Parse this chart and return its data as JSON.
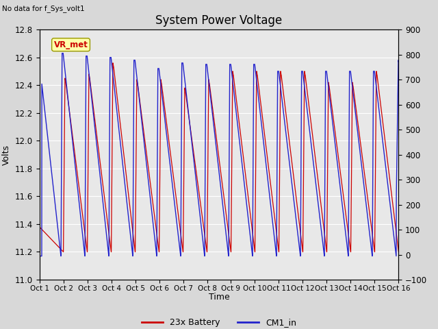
{
  "title": "System Power Voltage",
  "no_data_text": "No data for f_Sys_volt1",
  "xlabel": "Time",
  "ylabel_left": "Volts",
  "ylim_left": [
    11.0,
    12.8
  ],
  "ylim_right": [
    -100,
    900
  ],
  "yticks_left": [
    11.0,
    11.2,
    11.4,
    11.6,
    11.8,
    12.0,
    12.2,
    12.4,
    12.6,
    12.8
  ],
  "yticks_right": [
    -100,
    0,
    100,
    200,
    300,
    400,
    500,
    600,
    700,
    800,
    900
  ],
  "xtick_labels": [
    "Oct 1",
    "Oct 2",
    "Oct 3",
    "Oct 4",
    "Oct 5",
    "Oct 6",
    "Oct 7",
    "Oct 8",
    "Oct 9",
    "Oct 10",
    "Oct 11",
    "Oct 12",
    "Oct 13",
    "Oct 14",
    "Oct 15",
    "Oct 16"
  ],
  "bg_color": "#d8d8d8",
  "plot_bg_color": "#e8e8e8",
  "line_red_color": "#cc0000",
  "line_blue_color": "#2222cc",
  "vr_met_box_color": "#ffffaa",
  "vr_met_text_color": "#cc0000",
  "legend_entries": [
    "23x Battery",
    "CM1_in"
  ],
  "legend_colors": [
    "#cc0000",
    "#2222cc"
  ],
  "num_cycles": 15
}
